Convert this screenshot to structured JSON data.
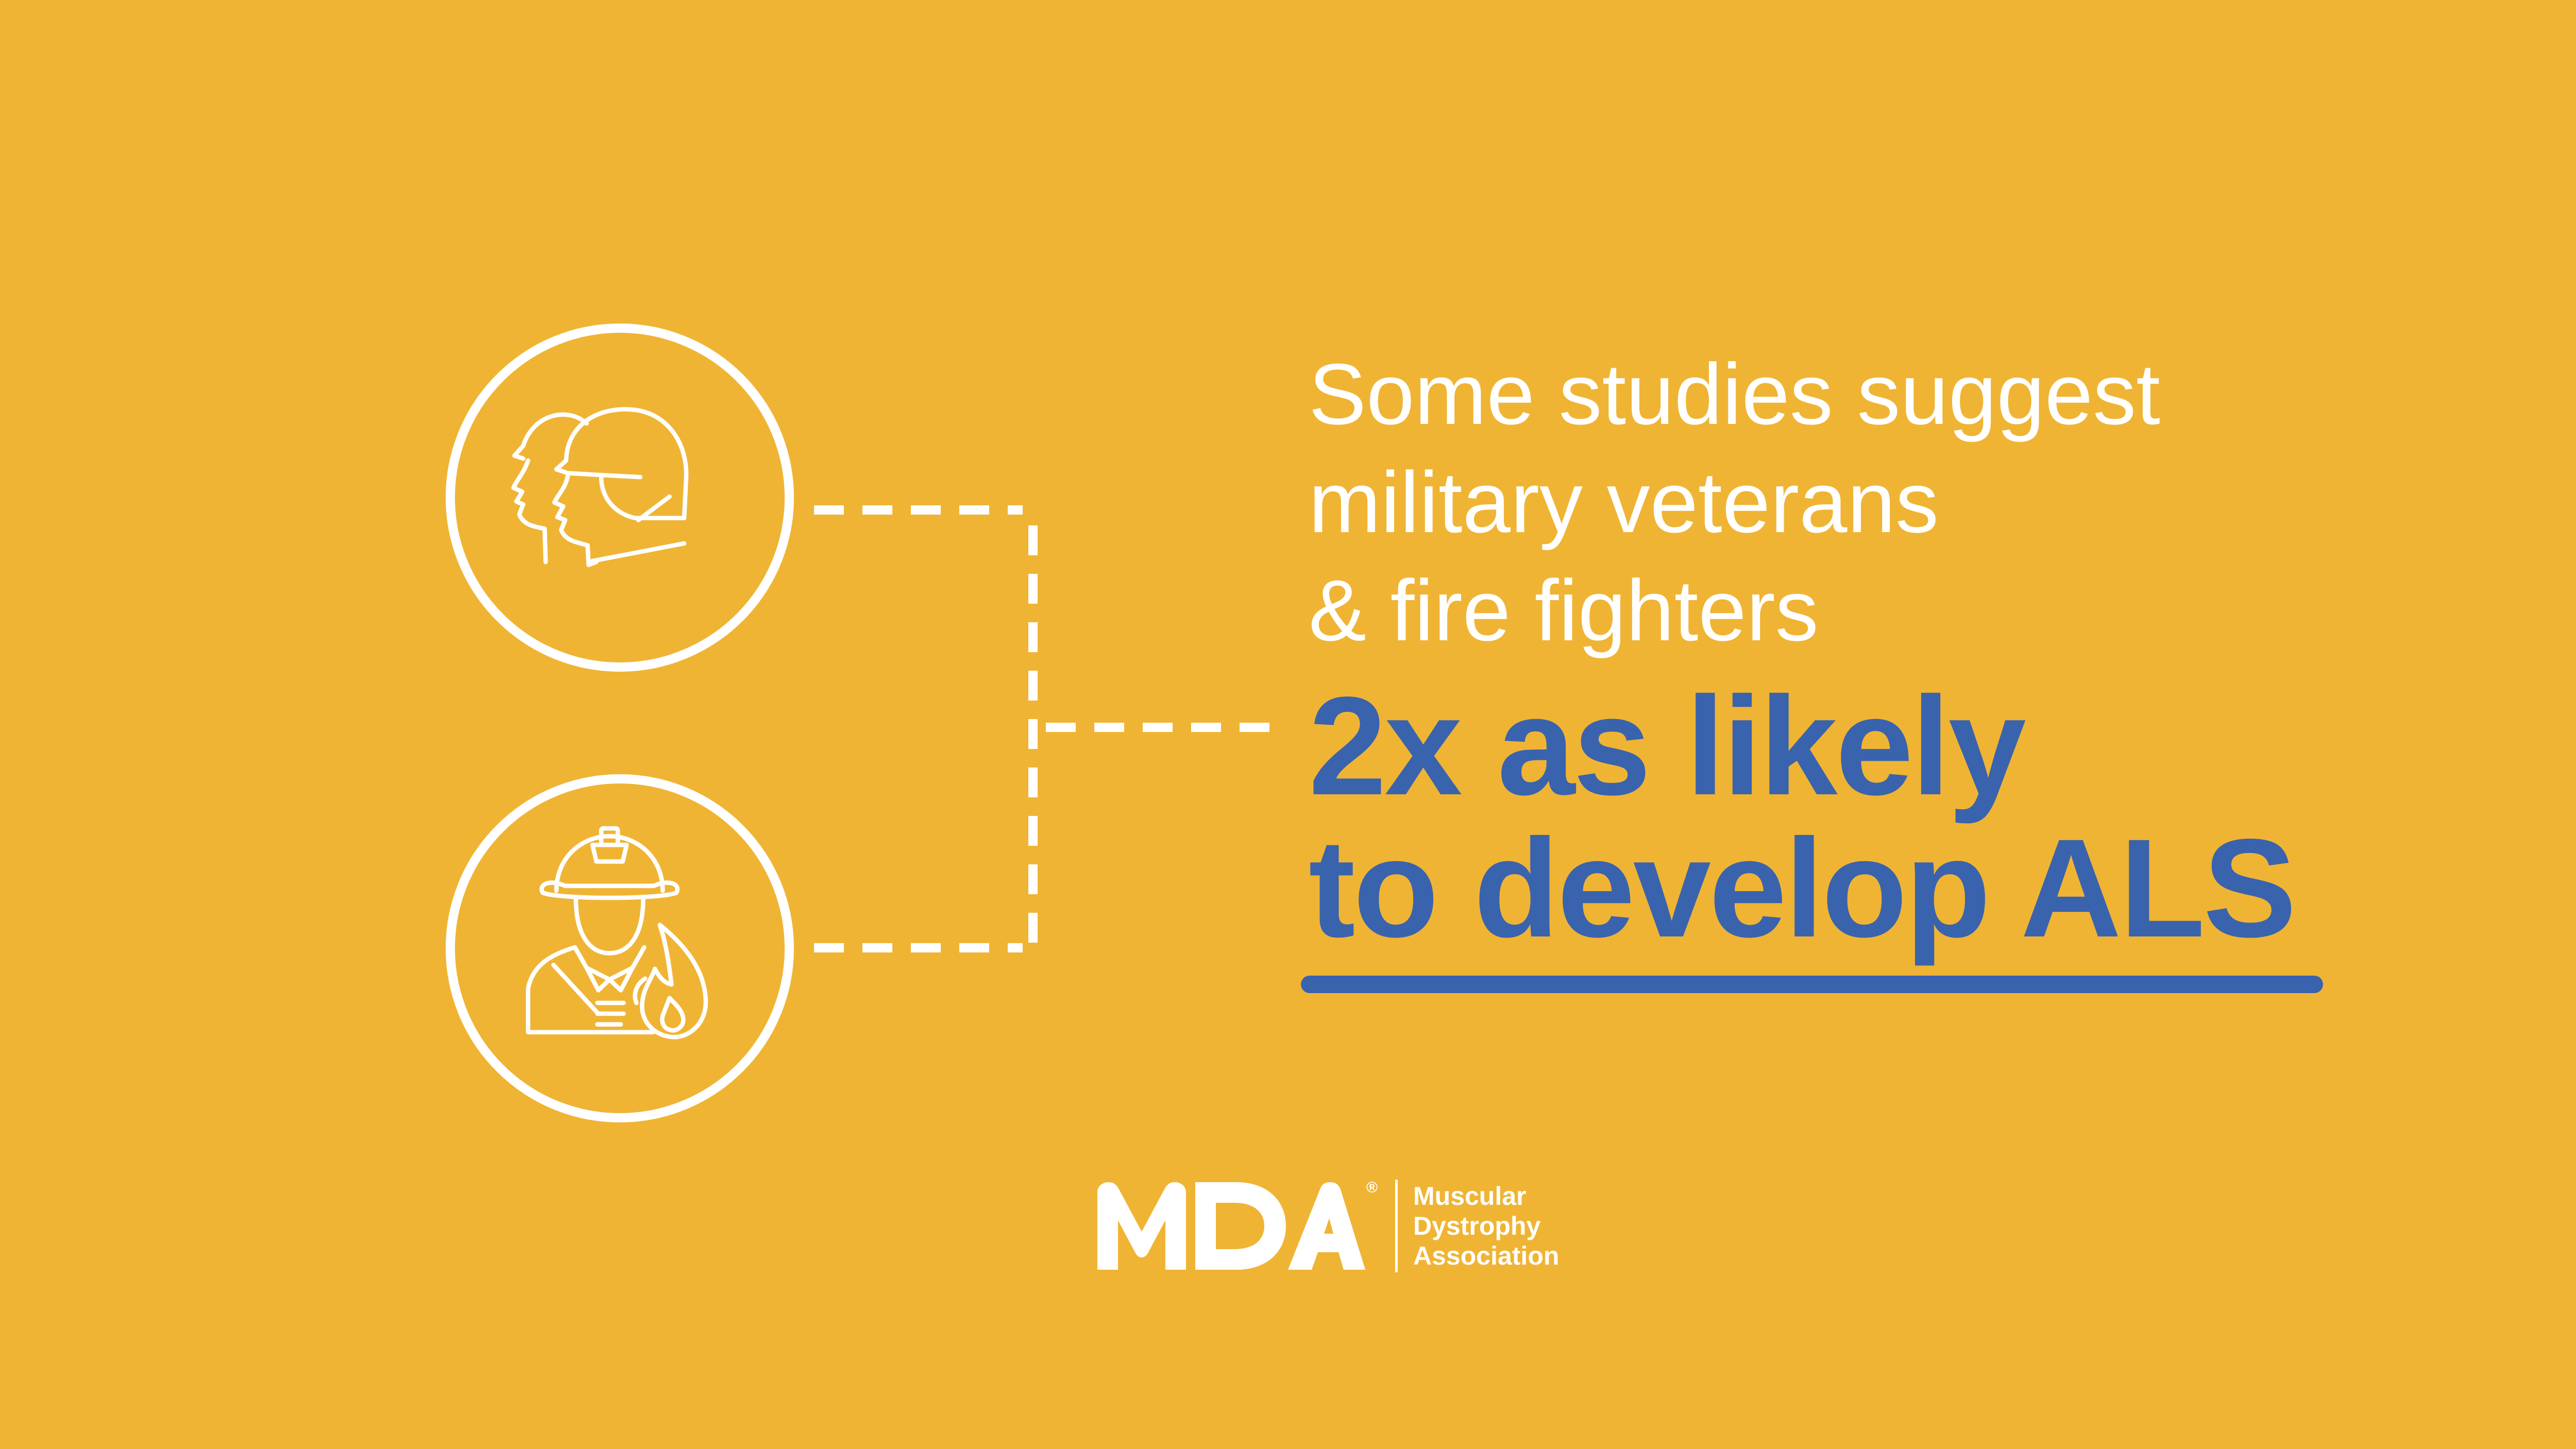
{
  "background_color": "#F0B434",
  "accent_color": "#3A63AD",
  "line_color": "#FFFFFF",
  "icons": {
    "soldiers": "soldiers-icon",
    "firefighter": "firefighter-icon"
  },
  "headline": {
    "lines": [
      "Some studies suggest",
      "military veterans",
      "& fire fighters"
    ],
    "emphasis": [
      "2x as likely",
      "to develop ALS"
    ]
  },
  "logo": {
    "mark_text": "MDA",
    "registered": "®",
    "name_lines": [
      "Muscular",
      "Dystrophy",
      "Association"
    ]
  }
}
